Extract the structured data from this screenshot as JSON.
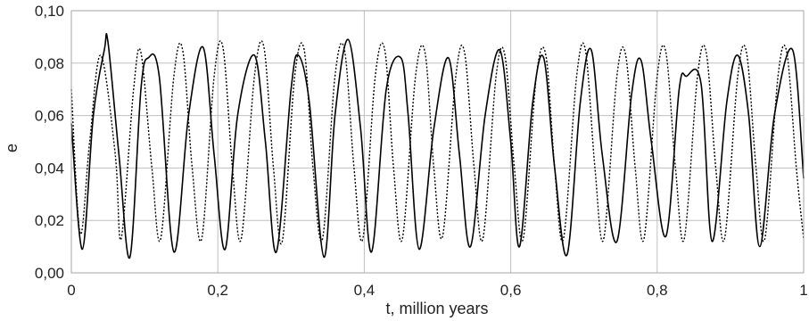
{
  "chart_data": {
    "type": "line",
    "xlabel": "t, million years",
    "ylabel": "e",
    "xlim": [
      0,
      1
    ],
    "ylim": [
      0,
      0.1
    ],
    "grid": true,
    "x_ticks": [
      "0",
      "0,2",
      "0,4",
      "0,6",
      "0,8",
      "1"
    ],
    "y_ticks": [
      "0,00",
      "0,02",
      "0,04",
      "0,06",
      "0,08",
      "0,10"
    ],
    "series": [
      {
        "style": "solid",
        "color": "#000000",
        "points": [
          [
            0.0,
            0.057
          ],
          [
            0.015,
            0.009
          ],
          [
            0.03,
            0.06
          ],
          [
            0.045,
            0.085
          ],
          [
            0.05,
            0.088
          ],
          [
            0.065,
            0.045
          ],
          [
            0.08,
            0.006
          ],
          [
            0.095,
            0.07
          ],
          [
            0.105,
            0.082
          ],
          [
            0.12,
            0.075
          ],
          [
            0.14,
            0.008
          ],
          [
            0.16,
            0.06
          ],
          [
            0.18,
            0.086
          ],
          [
            0.195,
            0.045
          ],
          [
            0.21,
            0.009
          ],
          [
            0.227,
            0.06
          ],
          [
            0.25,
            0.083
          ],
          [
            0.265,
            0.05
          ],
          [
            0.28,
            0.008
          ],
          [
            0.3,
            0.07
          ],
          [
            0.31,
            0.083
          ],
          [
            0.325,
            0.065
          ],
          [
            0.345,
            0.006
          ],
          [
            0.36,
            0.06
          ],
          [
            0.378,
            0.089
          ],
          [
            0.395,
            0.055
          ],
          [
            0.41,
            0.008
          ],
          [
            0.43,
            0.07
          ],
          [
            0.45,
            0.082
          ],
          [
            0.46,
            0.06
          ],
          [
            0.475,
            0.009
          ],
          [
            0.495,
            0.055
          ],
          [
            0.515,
            0.082
          ],
          [
            0.53,
            0.045
          ],
          [
            0.545,
            0.01
          ],
          [
            0.565,
            0.06
          ],
          [
            0.585,
            0.085
          ],
          [
            0.6,
            0.05
          ],
          [
            0.612,
            0.01
          ],
          [
            0.63,
            0.065
          ],
          [
            0.645,
            0.082
          ],
          [
            0.66,
            0.04
          ],
          [
            0.677,
            0.007
          ],
          [
            0.695,
            0.065
          ],
          [
            0.71,
            0.085
          ],
          [
            0.725,
            0.045
          ],
          [
            0.745,
            0.012
          ],
          [
            0.765,
            0.068
          ],
          [
            0.778,
            0.081
          ],
          [
            0.792,
            0.05
          ],
          [
            0.812,
            0.014
          ],
          [
            0.83,
            0.07
          ],
          [
            0.84,
            0.075
          ],
          [
            0.86,
            0.072
          ],
          [
            0.875,
            0.012
          ],
          [
            0.895,
            0.065
          ],
          [
            0.91,
            0.083
          ],
          [
            0.925,
            0.06
          ],
          [
            0.94,
            0.01
          ],
          [
            0.96,
            0.06
          ],
          [
            0.985,
            0.085
          ],
          [
            1.0,
            0.036
          ]
        ]
      },
      {
        "style": "dotted",
        "color": "#000000",
        "points": [
          [
            0.0,
            0.07
          ],
          [
            0.012,
            0.015
          ],
          [
            0.025,
            0.05
          ],
          [
            0.04,
            0.083
          ],
          [
            0.06,
            0.045
          ],
          [
            0.068,
            0.013
          ],
          [
            0.085,
            0.07
          ],
          [
            0.095,
            0.084
          ],
          [
            0.11,
            0.04
          ],
          [
            0.122,
            0.013
          ],
          [
            0.14,
            0.075
          ],
          [
            0.152,
            0.085
          ],
          [
            0.165,
            0.04
          ],
          [
            0.178,
            0.013
          ],
          [
            0.195,
            0.075
          ],
          [
            0.207,
            0.086
          ],
          [
            0.22,
            0.04
          ],
          [
            0.232,
            0.013
          ],
          [
            0.25,
            0.075
          ],
          [
            0.263,
            0.086
          ],
          [
            0.276,
            0.04
          ],
          [
            0.288,
            0.012
          ],
          [
            0.305,
            0.075
          ],
          [
            0.318,
            0.085
          ],
          [
            0.33,
            0.04
          ],
          [
            0.343,
            0.013
          ],
          [
            0.36,
            0.075
          ],
          [
            0.373,
            0.085
          ],
          [
            0.386,
            0.04
          ],
          [
            0.398,
            0.013
          ],
          [
            0.415,
            0.075
          ],
          [
            0.428,
            0.085
          ],
          [
            0.44,
            0.04
          ],
          [
            0.452,
            0.013
          ],
          [
            0.47,
            0.075
          ],
          [
            0.483,
            0.084
          ],
          [
            0.495,
            0.04
          ],
          [
            0.507,
            0.014
          ],
          [
            0.525,
            0.075
          ],
          [
            0.537,
            0.084
          ],
          [
            0.55,
            0.04
          ],
          [
            0.562,
            0.013
          ],
          [
            0.58,
            0.075
          ],
          [
            0.592,
            0.083
          ],
          [
            0.605,
            0.04
          ],
          [
            0.617,
            0.013
          ],
          [
            0.635,
            0.075
          ],
          [
            0.648,
            0.083
          ],
          [
            0.66,
            0.04
          ],
          [
            0.672,
            0.013
          ],
          [
            0.69,
            0.075
          ],
          [
            0.702,
            0.085
          ],
          [
            0.715,
            0.04
          ],
          [
            0.727,
            0.013
          ],
          [
            0.745,
            0.075
          ],
          [
            0.757,
            0.083
          ],
          [
            0.77,
            0.04
          ],
          [
            0.782,
            0.013
          ],
          [
            0.8,
            0.075
          ],
          [
            0.812,
            0.084
          ],
          [
            0.825,
            0.04
          ],
          [
            0.837,
            0.013
          ],
          [
            0.855,
            0.075
          ],
          [
            0.867,
            0.084
          ],
          [
            0.88,
            0.04
          ],
          [
            0.892,
            0.013
          ],
          [
            0.91,
            0.075
          ],
          [
            0.922,
            0.084
          ],
          [
            0.935,
            0.04
          ],
          [
            0.947,
            0.013
          ],
          [
            0.965,
            0.075
          ],
          [
            0.977,
            0.084
          ],
          [
            0.99,
            0.04
          ],
          [
            1.0,
            0.013
          ]
        ]
      }
    ]
  }
}
